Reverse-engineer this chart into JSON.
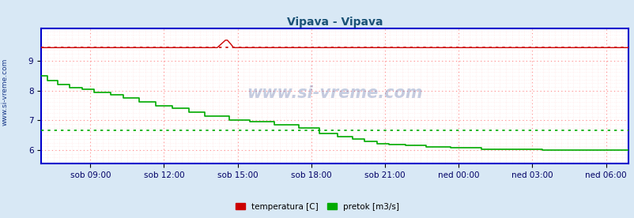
{
  "title": "Vipava - Vipava",
  "title_color": "#1a5276",
  "title_fontsize": 10,
  "bg_color": "#d8e8f5",
  "plot_bg_color": "#ffffff",
  "x_tick_labels": [
    "sob 09:00",
    "sob 12:00",
    "sob 15:00",
    "sob 18:00",
    "sob 21:00",
    "ned 00:00",
    "ned 03:00",
    "ned 06:00"
  ],
  "ylim": [
    5.55,
    10.1
  ],
  "yticks": [
    6,
    7,
    8,
    9
  ],
  "grid_color_major": "#ff8888",
  "grid_color_minor": "#ffcccc",
  "watermark": "www.si-vreme.com",
  "watermark_color": "#1a3a8a",
  "sidebar_text": "www.si-vreme.com",
  "sidebar_color": "#1a3a8a",
  "temp_color": "#cc0000",
  "flow_color": "#00aa00",
  "temp_avg_line": 9.45,
  "flow_avg_line": 6.66,
  "legend_labels": [
    "temperatura [C]",
    "pretok [m3/s]"
  ],
  "legend_colors": [
    "#cc0000",
    "#00aa00"
  ],
  "axis_color": "#0000cc",
  "tick_color": "#000066"
}
